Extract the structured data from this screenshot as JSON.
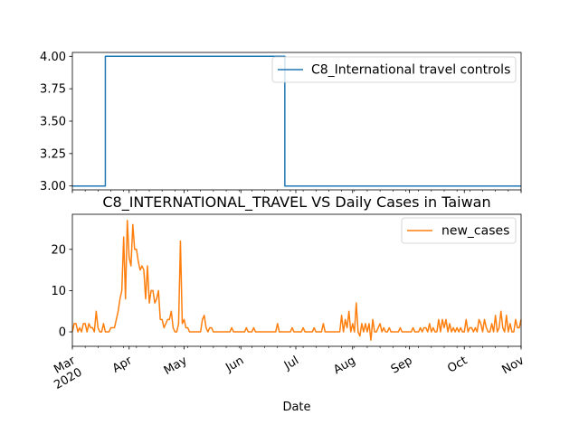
{
  "chart_data": [
    {
      "type": "line",
      "title": "",
      "xlabel": "",
      "ylabel": "",
      "x_start": "2020-03-01",
      "x_end": "2020-11-01",
      "ylim": [
        2.97,
        4.03
      ],
      "yticks": [
        3.0,
        3.25,
        3.5,
        3.75,
        4.0
      ],
      "ytick_labels": [
        "3.00",
        "3.25",
        "3.50",
        "3.75",
        "4.00"
      ],
      "legend_position": "top-right",
      "grid": false,
      "series": [
        {
          "name": "C8_International travel controls",
          "color": "#1f77b4",
          "points": [
            [
              "2020-03-01",
              3
            ],
            [
              "2020-03-19",
              3
            ],
            [
              "2020-03-19",
              4
            ],
            [
              "2020-06-25",
              4
            ],
            [
              "2020-06-25",
              3
            ],
            [
              "2020-11-01",
              3
            ]
          ]
        }
      ]
    },
    {
      "type": "line",
      "title": "C8_INTERNATIONAL_TRAVEL VS Daily Cases in Taiwan",
      "xlabel": "Date",
      "ylabel": "",
      "x_start": "2020-03-01",
      "x_end": "2020-11-01",
      "ylim": [
        -3.5,
        28.5
      ],
      "yticks": [
        0,
        10,
        20
      ],
      "ytick_labels": [
        "0",
        "10",
        "20"
      ],
      "xticks": [
        "2020-03-01",
        "2020-04-01",
        "2020-05-01",
        "2020-06-01",
        "2020-07-01",
        "2020-08-01",
        "2020-09-01",
        "2020-10-01",
        "2020-11-01"
      ],
      "xtick_labels": [
        "Mar\n2020",
        "Apr",
        "May",
        "Jun",
        "Jul",
        "Aug",
        "Sep",
        "Oct",
        "Nov"
      ],
      "legend_position": "top-right",
      "grid": false,
      "series": [
        {
          "name": "new_cases",
          "color": "#ff7f0e",
          "points": [
            [
              "2020-03-01",
              0
            ],
            [
              "2020-03-02",
              2
            ],
            [
              "2020-03-03",
              2
            ],
            [
              "2020-03-04",
              0
            ],
            [
              "2020-03-05",
              1
            ],
            [
              "2020-03-06",
              0
            ],
            [
              "2020-03-07",
              2
            ],
            [
              "2020-03-08",
              2
            ],
            [
              "2020-03-09",
              0
            ],
            [
              "2020-03-10",
              2
            ],
            [
              "2020-03-11",
              1
            ],
            [
              "2020-03-12",
              1
            ],
            [
              "2020-03-13",
              0
            ],
            [
              "2020-03-14",
              5
            ],
            [
              "2020-03-15",
              1
            ],
            [
              "2020-03-16",
              0
            ],
            [
              "2020-03-17",
              0
            ],
            [
              "2020-03-18",
              2
            ],
            [
              "2020-03-19",
              0
            ],
            [
              "2020-03-20",
              0
            ],
            [
              "2020-03-21",
              0
            ],
            [
              "2020-03-22",
              1
            ],
            [
              "2020-03-23",
              1
            ],
            [
              "2020-03-24",
              1
            ],
            [
              "2020-03-25",
              3
            ],
            [
              "2020-03-26",
              5
            ],
            [
              "2020-03-27",
              8
            ],
            [
              "2020-03-28",
              10
            ],
            [
              "2020-03-29",
              23
            ],
            [
              "2020-03-30",
              8
            ],
            [
              "2020-03-31",
              27
            ],
            [
              "2020-04-01",
              18
            ],
            [
              "2020-04-02",
              16
            ],
            [
              "2020-04-03",
              26
            ],
            [
              "2020-04-04",
              20
            ],
            [
              "2020-04-05",
              20
            ],
            [
              "2020-04-06",
              17
            ],
            [
              "2020-04-07",
              15
            ],
            [
              "2020-04-08",
              16
            ],
            [
              "2020-04-09",
              15
            ],
            [
              "2020-04-10",
              8
            ],
            [
              "2020-04-11",
              16
            ],
            [
              "2020-04-12",
              7
            ],
            [
              "2020-04-13",
              10
            ],
            [
              "2020-04-14",
              10
            ],
            [
              "2020-04-15",
              7
            ],
            [
              "2020-04-16",
              8
            ],
            [
              "2020-04-17",
              10
            ],
            [
              "2020-04-18",
              3
            ],
            [
              "2020-04-19",
              3
            ],
            [
              "2020-04-20",
              1
            ],
            [
              "2020-04-21",
              2
            ],
            [
              "2020-04-22",
              3
            ],
            [
              "2020-04-23",
              3
            ],
            [
              "2020-04-24",
              5
            ],
            [
              "2020-04-25",
              1
            ],
            [
              "2020-04-26",
              0
            ],
            [
              "2020-04-27",
              0
            ],
            [
              "2020-04-28",
              2
            ],
            [
              "2020-04-29",
              22
            ],
            [
              "2020-04-30",
              2
            ],
            [
              "2020-05-01",
              3
            ],
            [
              "2020-05-02",
              1
            ],
            [
              "2020-05-03",
              1
            ],
            [
              "2020-05-04",
              0
            ],
            [
              "2020-05-05",
              0
            ],
            [
              "2020-05-06",
              0
            ],
            [
              "2020-05-07",
              0
            ],
            [
              "2020-05-08",
              0
            ],
            [
              "2020-05-09",
              0
            ],
            [
              "2020-05-10",
              0
            ],
            [
              "2020-05-11",
              3
            ],
            [
              "2020-05-12",
              4
            ],
            [
              "2020-05-13",
              1
            ],
            [
              "2020-05-14",
              0
            ],
            [
              "2020-05-15",
              1
            ],
            [
              "2020-05-16",
              1
            ],
            [
              "2020-05-17",
              0
            ],
            [
              "2020-05-18",
              0
            ],
            [
              "2020-05-19",
              0
            ],
            [
              "2020-05-26",
              0
            ],
            [
              "2020-05-27",
              1
            ],
            [
              "2020-05-28",
              0
            ],
            [
              "2020-06-03",
              0
            ],
            [
              "2020-06-04",
              1
            ],
            [
              "2020-06-05",
              0
            ],
            [
              "2020-06-07",
              0
            ],
            [
              "2020-06-08",
              1
            ],
            [
              "2020-06-09",
              0
            ],
            [
              "2020-06-20",
              0
            ],
            [
              "2020-06-21",
              2
            ],
            [
              "2020-06-22",
              0
            ],
            [
              "2020-06-28",
              0
            ],
            [
              "2020-06-29",
              1
            ],
            [
              "2020-06-30",
              0
            ],
            [
              "2020-07-04",
              0
            ],
            [
              "2020-07-05",
              1
            ],
            [
              "2020-07-06",
              0
            ],
            [
              "2020-07-10",
              0
            ],
            [
              "2020-07-11",
              1
            ],
            [
              "2020-07-12",
              0
            ],
            [
              "2020-07-15",
              0
            ],
            [
              "2020-07-16",
              2
            ],
            [
              "2020-07-17",
              0
            ],
            [
              "2020-07-25",
              0
            ],
            [
              "2020-07-26",
              4
            ],
            [
              "2020-07-27",
              0
            ],
            [
              "2020-07-28",
              3
            ],
            [
              "2020-07-29",
              1
            ],
            [
              "2020-07-30",
              5
            ],
            [
              "2020-07-31",
              0
            ],
            [
              "2020-08-01",
              2
            ],
            [
              "2020-08-02",
              0
            ],
            [
              "2020-08-03",
              7
            ],
            [
              "2020-08-04",
              0
            ],
            [
              "2020-08-05",
              -1
            ],
            [
              "2020-08-06",
              2
            ],
            [
              "2020-08-07",
              0
            ],
            [
              "2020-08-08",
              2
            ],
            [
              "2020-08-09",
              0
            ],
            [
              "2020-08-10",
              2
            ],
            [
              "2020-08-11",
              -2
            ],
            [
              "2020-08-12",
              3
            ],
            [
              "2020-08-13",
              0
            ],
            [
              "2020-08-14",
              0
            ],
            [
              "2020-08-15",
              1
            ],
            [
              "2020-08-16",
              2
            ],
            [
              "2020-08-17",
              0
            ],
            [
              "2020-08-18",
              1
            ],
            [
              "2020-08-19",
              0
            ],
            [
              "2020-08-20",
              0
            ],
            [
              "2020-08-21",
              1
            ],
            [
              "2020-08-22",
              0
            ],
            [
              "2020-08-26",
              0
            ],
            [
              "2020-08-27",
              1
            ],
            [
              "2020-08-28",
              0
            ],
            [
              "2020-09-02",
              0
            ],
            [
              "2020-09-03",
              1
            ],
            [
              "2020-09-04",
              0
            ],
            [
              "2020-09-06",
              0
            ],
            [
              "2020-09-07",
              1
            ],
            [
              "2020-09-08",
              0
            ],
            [
              "2020-09-09",
              1
            ],
            [
              "2020-09-10",
              1
            ],
            [
              "2020-09-11",
              0
            ],
            [
              "2020-09-12",
              2
            ],
            [
              "2020-09-13",
              0
            ],
            [
              "2020-09-14",
              1
            ],
            [
              "2020-09-15",
              0
            ],
            [
              "2020-09-16",
              0
            ],
            [
              "2020-09-17",
              3
            ],
            [
              "2020-09-18",
              0
            ],
            [
              "2020-09-19",
              3
            ],
            [
              "2020-09-20",
              1
            ],
            [
              "2020-09-21",
              3
            ],
            [
              "2020-09-22",
              0
            ],
            [
              "2020-09-23",
              2
            ],
            [
              "2020-09-24",
              0
            ],
            [
              "2020-09-25",
              1
            ],
            [
              "2020-09-26",
              0
            ],
            [
              "2020-09-27",
              1
            ],
            [
              "2020-09-28",
              0
            ],
            [
              "2020-09-29",
              1
            ],
            [
              "2020-09-30",
              0
            ],
            [
              "2020-10-01",
              0
            ],
            [
              "2020-10-02",
              3
            ],
            [
              "2020-10-03",
              0
            ],
            [
              "2020-10-04",
              1
            ],
            [
              "2020-10-05",
              1
            ],
            [
              "2020-10-06",
              0
            ],
            [
              "2020-10-07",
              1
            ],
            [
              "2020-10-08",
              0
            ],
            [
              "2020-10-09",
              3
            ],
            [
              "2020-10-10",
              2
            ],
            [
              "2020-10-11",
              0
            ],
            [
              "2020-10-12",
              3
            ],
            [
              "2020-10-13",
              1
            ],
            [
              "2020-10-14",
              0
            ],
            [
              "2020-10-15",
              0
            ],
            [
              "2020-10-16",
              2
            ],
            [
              "2020-10-17",
              0
            ],
            [
              "2020-10-18",
              4
            ],
            [
              "2020-10-19",
              0
            ],
            [
              "2020-10-20",
              1
            ],
            [
              "2020-10-21",
              5
            ],
            [
              "2020-10-22",
              1
            ],
            [
              "2020-10-23",
              0
            ],
            [
              "2020-10-24",
              4
            ],
            [
              "2020-10-25",
              0
            ],
            [
              "2020-10-26",
              2
            ],
            [
              "2020-10-27",
              0
            ],
            [
              "2020-10-28",
              0
            ],
            [
              "2020-10-29",
              3
            ],
            [
              "2020-10-30",
              1
            ],
            [
              "2020-10-31",
              1
            ],
            [
              "2020-11-01",
              3
            ]
          ]
        }
      ]
    }
  ]
}
